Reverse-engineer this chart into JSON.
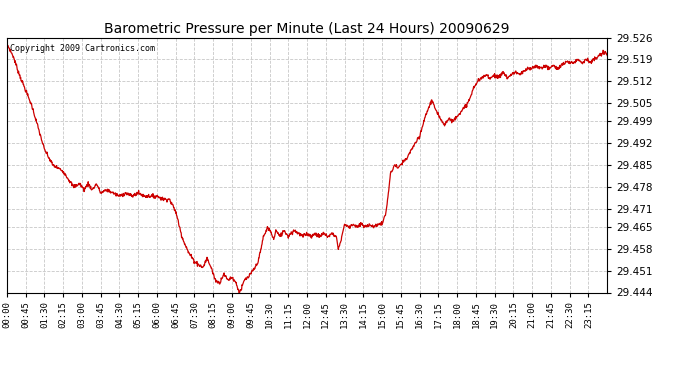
{
  "title": "Barometric Pressure per Minute (Last 24 Hours) 20090629",
  "copyright": "Copyright 2009 Cartronics.com",
  "line_color": "#cc0000",
  "background_color": "#ffffff",
  "grid_color": "#c8c8c8",
  "ylim": [
    29.444,
    29.526
  ],
  "yticks": [
    29.444,
    29.451,
    29.458,
    29.465,
    29.471,
    29.478,
    29.485,
    29.492,
    29.499,
    29.505,
    29.512,
    29.519,
    29.526
  ],
  "xtick_labels": [
    "00:00",
    "00:45",
    "01:30",
    "02:15",
    "03:00",
    "03:45",
    "04:30",
    "05:15",
    "06:00",
    "06:45",
    "07:30",
    "08:15",
    "09:00",
    "09:45",
    "10:30",
    "11:15",
    "12:00",
    "12:45",
    "13:30",
    "14:15",
    "15:00",
    "15:45",
    "16:30",
    "17:15",
    "18:00",
    "18:45",
    "19:30",
    "20:15",
    "21:00",
    "21:45",
    "22:30",
    "23:15"
  ],
  "num_points": 1440,
  "key_points": [
    [
      0,
      29.524
    ],
    [
      15,
      29.52
    ],
    [
      30,
      29.514
    ],
    [
      60,
      29.504
    ],
    [
      90,
      29.49
    ],
    [
      110,
      29.485
    ],
    [
      135,
      29.483
    ],
    [
      150,
      29.48
    ],
    [
      160,
      29.478
    ],
    [
      175,
      29.479
    ],
    [
      185,
      29.477
    ],
    [
      195,
      29.479
    ],
    [
      205,
      29.477
    ],
    [
      215,
      29.479
    ],
    [
      225,
      29.476
    ],
    [
      240,
      29.477
    ],
    [
      255,
      29.476
    ],
    [
      270,
      29.475
    ],
    [
      285,
      29.476
    ],
    [
      300,
      29.475
    ],
    [
      315,
      29.476
    ],
    [
      330,
      29.475
    ],
    [
      345,
      29.475
    ],
    [
      360,
      29.475
    ],
    [
      375,
      29.474
    ],
    [
      390,
      29.474
    ],
    [
      405,
      29.47
    ],
    [
      420,
      29.462
    ],
    [
      435,
      29.457
    ],
    [
      450,
      29.454
    ],
    [
      460,
      29.453
    ],
    [
      470,
      29.452
    ],
    [
      480,
      29.455
    ],
    [
      490,
      29.452
    ],
    [
      500,
      29.448
    ],
    [
      510,
      29.447
    ],
    [
      520,
      29.45
    ],
    [
      530,
      29.448
    ],
    [
      540,
      29.449
    ],
    [
      550,
      29.447
    ],
    [
      557,
      29.444
    ],
    [
      562,
      29.445
    ],
    [
      570,
      29.448
    ],
    [
      580,
      29.449
    ],
    [
      590,
      29.451
    ],
    [
      600,
      29.453
    ],
    [
      610,
      29.458
    ],
    [
      615,
      29.462
    ],
    [
      620,
      29.463
    ],
    [
      625,
      29.465
    ],
    [
      630,
      29.464
    ],
    [
      635,
      29.463
    ],
    [
      640,
      29.461
    ],
    [
      645,
      29.464
    ],
    [
      650,
      29.463
    ],
    [
      655,
      29.462
    ],
    [
      660,
      29.463
    ],
    [
      665,
      29.464
    ],
    [
      670,
      29.463
    ],
    [
      675,
      29.462
    ],
    [
      680,
      29.463
    ],
    [
      690,
      29.464
    ],
    [
      700,
      29.463
    ],
    [
      710,
      29.462
    ],
    [
      720,
      29.463
    ],
    [
      730,
      29.462
    ],
    [
      740,
      29.463
    ],
    [
      750,
      29.462
    ],
    [
      760,
      29.463
    ],
    [
      770,
      29.462
    ],
    [
      780,
      29.463
    ],
    [
      790,
      29.462
    ],
    [
      795,
      29.458
    ],
    [
      800,
      29.46
    ],
    [
      810,
      29.466
    ],
    [
      820,
      29.465
    ],
    [
      830,
      29.466
    ],
    [
      840,
      29.465
    ],
    [
      850,
      29.466
    ],
    [
      860,
      29.465
    ],
    [
      870,
      29.466
    ],
    [
      880,
      29.465
    ],
    [
      890,
      29.466
    ],
    [
      900,
      29.466
    ],
    [
      910,
      29.47
    ],
    [
      920,
      29.482
    ],
    [
      930,
      29.485
    ],
    [
      940,
      29.484
    ],
    [
      950,
      29.486
    ],
    [
      960,
      29.487
    ],
    [
      970,
      29.49
    ],
    [
      980,
      29.492
    ],
    [
      990,
      29.494
    ],
    [
      1000,
      29.499
    ],
    [
      1010,
      29.503
    ],
    [
      1020,
      29.506
    ],
    [
      1030,
      29.502
    ],
    [
      1040,
      29.5
    ],
    [
      1050,
      29.498
    ],
    [
      1060,
      29.5
    ],
    [
      1070,
      29.499
    ],
    [
      1080,
      29.501
    ],
    [
      1090,
      29.502
    ],
    [
      1100,
      29.504
    ],
    [
      1110,
      29.506
    ],
    [
      1120,
      29.51
    ],
    [
      1130,
      29.512
    ],
    [
      1140,
      29.513
    ],
    [
      1150,
      29.514
    ],
    [
      1160,
      29.513
    ],
    [
      1170,
      29.514
    ],
    [
      1180,
      29.513
    ],
    [
      1190,
      29.515
    ],
    [
      1200,
      29.513
    ],
    [
      1210,
      29.514
    ],
    [
      1220,
      29.515
    ],
    [
      1230,
      29.514
    ],
    [
      1240,
      29.515
    ],
    [
      1250,
      29.516
    ],
    [
      1260,
      29.516
    ],
    [
      1270,
      29.517
    ],
    [
      1280,
      29.516
    ],
    [
      1290,
      29.517
    ],
    [
      1300,
      29.516
    ],
    [
      1310,
      29.517
    ],
    [
      1320,
      29.516
    ],
    [
      1330,
      29.517
    ],
    [
      1340,
      29.518
    ],
    [
      1350,
      29.518
    ],
    [
      1360,
      29.518
    ],
    [
      1370,
      29.519
    ],
    [
      1380,
      29.518
    ],
    [
      1390,
      29.519
    ],
    [
      1400,
      29.518
    ],
    [
      1410,
      29.519
    ],
    [
      1420,
      29.52
    ],
    [
      1430,
      29.521
    ],
    [
      1440,
      29.521
    ]
  ]
}
